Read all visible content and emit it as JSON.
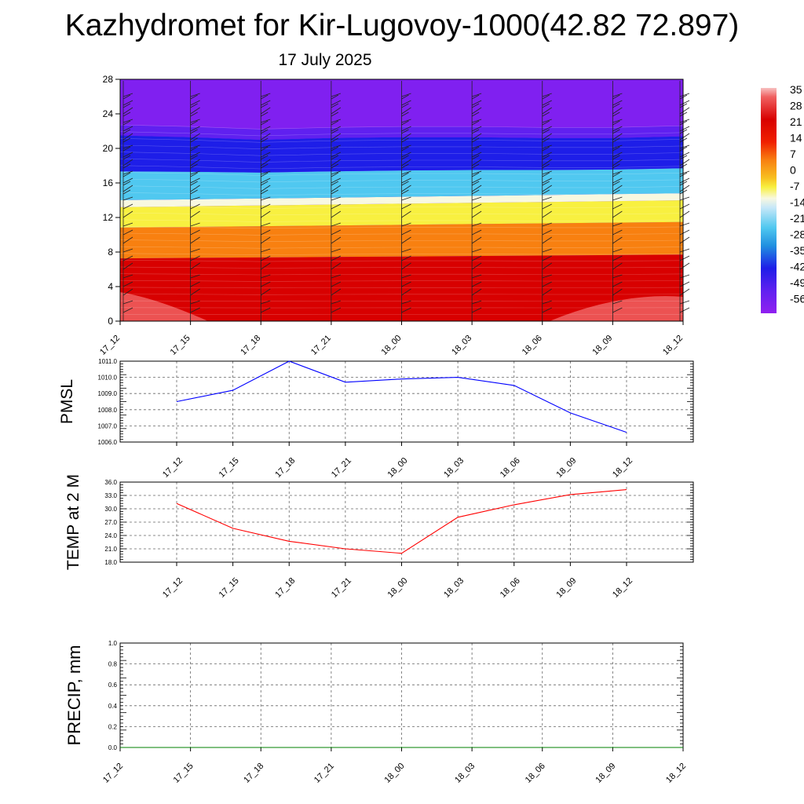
{
  "header": {
    "title": "Kazhydromet for Kir-Lugovoy-1000(42.82 72.897)",
    "subtitle": "17 July 2025"
  },
  "chart_data": [
    {
      "type": "heatmap",
      "ylim": [
        0,
        28
      ],
      "yticks": [
        "0",
        "4",
        "8",
        "12",
        "16",
        "20",
        "24",
        "28"
      ],
      "x": [
        "17_12",
        "17_15",
        "17_18",
        "17_21",
        "18_00",
        "18_03",
        "18_06",
        "18_09",
        "18_12"
      ],
      "colorbar_labels": [
        "35",
        "28",
        "21",
        "14",
        "7",
        "0",
        "-7",
        "-14",
        "-21",
        "-28",
        "-35",
        "-42",
        "-49",
        "-56"
      ],
      "freezing_level": [
        13.2,
        13.3,
        13.4,
        13.5,
        13.6,
        13.7,
        13.8,
        13.9,
        14.0
      ],
      "tropopause_level": [
        21.5,
        21.3,
        21.0,
        21.2,
        21.3,
        21.3,
        21.2,
        21.2,
        21.4
      ],
      "grid": false,
      "colors": {
        "cold_top": "#8020f0",
        "blue": "#1e1ee8",
        "light_blue": "#50c8f0",
        "pale": "#f8f8e0",
        "yellow": "#f8f040",
        "orange": "#f88010",
        "red": "#d80000",
        "hot": "#f06060"
      }
    },
    {
      "type": "line",
      "ylabel": "PMSL",
      "x": [
        "17_12",
        "17_15",
        "17_18",
        "17_21",
        "18_00",
        "18_03",
        "18_06",
        "18_09",
        "18_12"
      ],
      "values": [
        1008.5,
        1009.2,
        1011.0,
        1009.7,
        1009.9,
        1010.0,
        1009.5,
        1007.8,
        1006.6
      ],
      "ylim": [
        1006.0,
        1011.0
      ],
      "yticks": [
        "1006.0",
        "1007.0",
        "1008.0",
        "1009.0",
        "1010.0",
        "1011.0"
      ],
      "grid": true,
      "color": "#0000ff"
    },
    {
      "type": "line",
      "ylabel": "TEMP at 2 M",
      "x": [
        "17_12",
        "17_15",
        "17_18",
        "17_21",
        "18_00",
        "18_03",
        "18_06",
        "18_09",
        "18_12"
      ],
      "values": [
        31.2,
        25.6,
        22.7,
        21.0,
        20.0,
        28.1,
        30.9,
        33.2,
        34.3
      ],
      "ylim": [
        18.0,
        36.0
      ],
      "yticks": [
        "18.0",
        "21.0",
        "24.0",
        "27.0",
        "30.0",
        "33.0",
        "36.0"
      ],
      "grid": true,
      "color": "#ff0000"
    },
    {
      "type": "line",
      "ylabel": "PRECIP, mm",
      "x": [
        "17_12",
        "17_15",
        "17_18",
        "17_21",
        "18_00",
        "18_03",
        "18_06",
        "18_09",
        "18_12"
      ],
      "values": [
        0,
        0,
        0,
        0,
        0,
        0,
        0,
        0,
        0
      ],
      "ylim": [
        0.0,
        1.0
      ],
      "yticks": [
        "0.0",
        "0.2",
        "0.4",
        "0.6",
        "0.8",
        "1.0"
      ],
      "grid": true,
      "color": "#008000"
    }
  ]
}
